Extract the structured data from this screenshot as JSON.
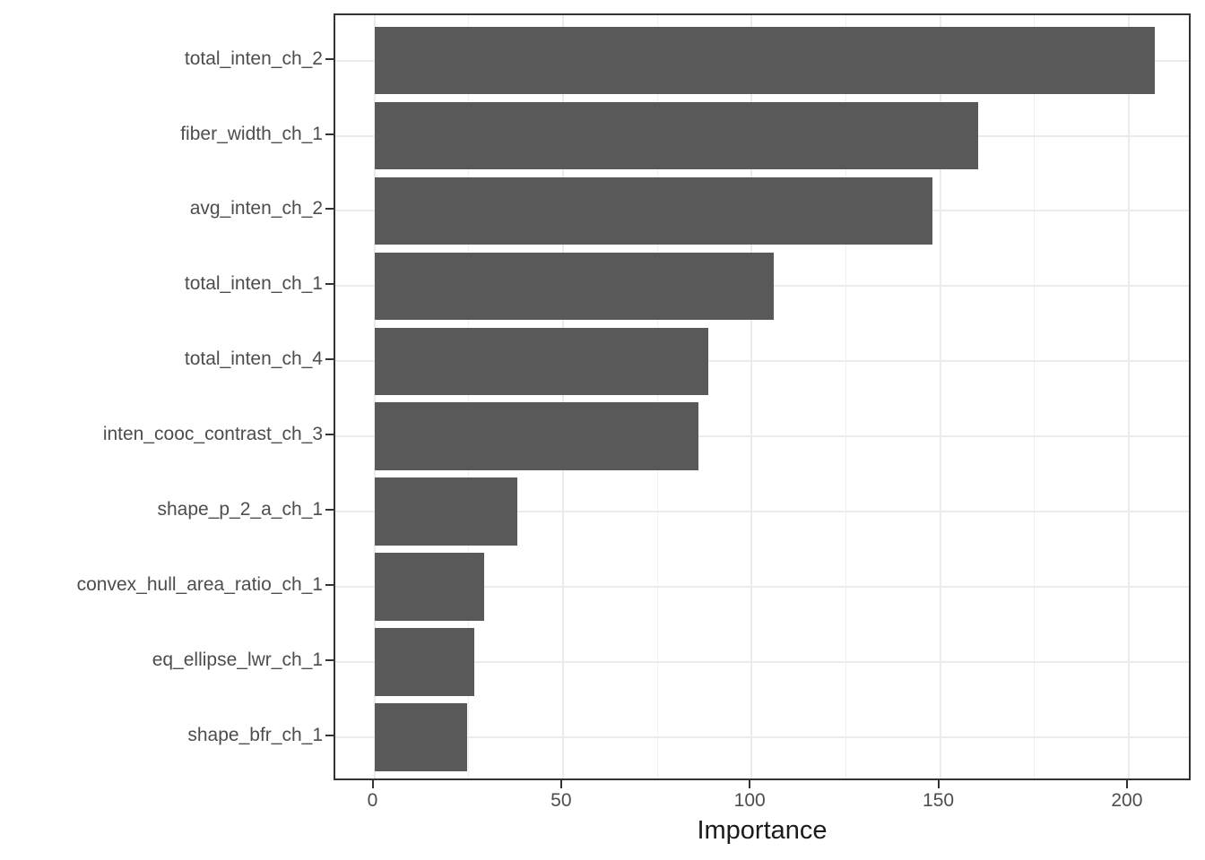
{
  "chart_data": {
    "type": "bar",
    "orientation": "horizontal",
    "title": "",
    "xlabel": "Importance",
    "ylabel": "",
    "categories": [
      "total_inten_ch_2",
      "fiber_width_ch_1",
      "avg_inten_ch_2",
      "total_inten_ch_1",
      "total_inten_ch_4",
      "inten_cooc_contrast_ch_3",
      "shape_p_2_a_ch_1",
      "convex_hull_area_ratio_ch_1",
      "eq_ellipse_lwr_ch_1",
      "shape_bfr_ch_1"
    ],
    "values": [
      207,
      160,
      148,
      106,
      88.5,
      86,
      38,
      29,
      26.5,
      24.5
    ],
    "x_ticks": [
      0,
      50,
      100,
      150,
      200
    ],
    "x_minor_ticks": [
      25,
      75,
      125,
      175
    ],
    "xlim": [
      -10.3,
      216.9
    ],
    "grid": "major+minor vertical, major horizontal at category centers",
    "legend": "none",
    "colors": {
      "bar_fill": "#595959",
      "grid_major": "#EBEBEB",
      "grid_minor": "#F0F0F0",
      "panel_border": "#333333",
      "tick_mark": "#333333",
      "axis_text": "#4D4D4D",
      "axis_title": "#1A1A1A",
      "background": "#FFFFFF"
    }
  }
}
